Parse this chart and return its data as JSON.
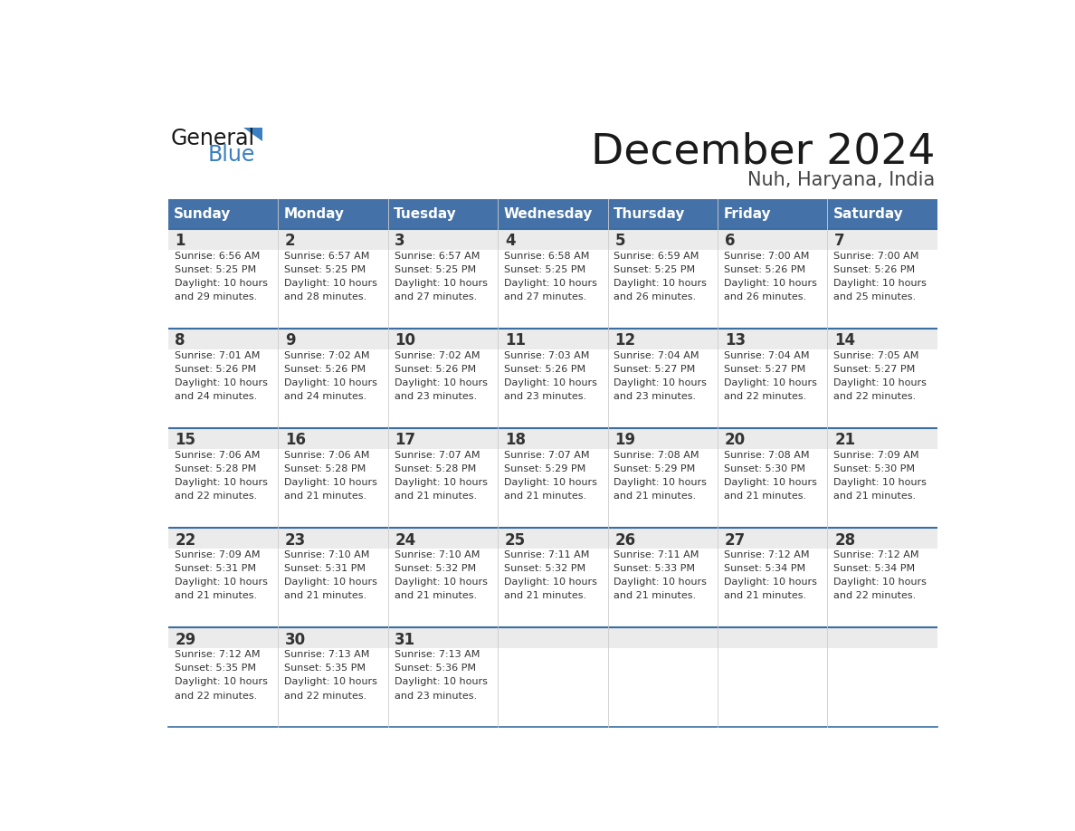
{
  "title": "December 2024",
  "subtitle": "Nuh, Haryana, India",
  "days_of_week": [
    "Sunday",
    "Monday",
    "Tuesday",
    "Wednesday",
    "Thursday",
    "Friday",
    "Saturday"
  ],
  "header_bg": "#4472a8",
  "header_text_color": "#ffffff",
  "cell_num_bg": "#ebebeb",
  "cell_text_bg": "#ffffff",
  "divider_color": "#3a6ea5",
  "text_color": "#333333",
  "calendar_data": [
    {
      "day": 1,
      "sunrise": "6:56 AM",
      "sunset": "5:25 PM",
      "daylight_h": "10 hours",
      "daylight_m": "and 29 minutes."
    },
    {
      "day": 2,
      "sunrise": "6:57 AM",
      "sunset": "5:25 PM",
      "daylight_h": "10 hours",
      "daylight_m": "and 28 minutes."
    },
    {
      "day": 3,
      "sunrise": "6:57 AM",
      "sunset": "5:25 PM",
      "daylight_h": "10 hours",
      "daylight_m": "and 27 minutes."
    },
    {
      "day": 4,
      "sunrise": "6:58 AM",
      "sunset": "5:25 PM",
      "daylight_h": "10 hours",
      "daylight_m": "and 27 minutes."
    },
    {
      "day": 5,
      "sunrise": "6:59 AM",
      "sunset": "5:25 PM",
      "daylight_h": "10 hours",
      "daylight_m": "and 26 minutes."
    },
    {
      "day": 6,
      "sunrise": "7:00 AM",
      "sunset": "5:26 PM",
      "daylight_h": "10 hours",
      "daylight_m": "and 26 minutes."
    },
    {
      "day": 7,
      "sunrise": "7:00 AM",
      "sunset": "5:26 PM",
      "daylight_h": "10 hours",
      "daylight_m": "and 25 minutes."
    },
    {
      "day": 8,
      "sunrise": "7:01 AM",
      "sunset": "5:26 PM",
      "daylight_h": "10 hours",
      "daylight_m": "and 24 minutes."
    },
    {
      "day": 9,
      "sunrise": "7:02 AM",
      "sunset": "5:26 PM",
      "daylight_h": "10 hours",
      "daylight_m": "and 24 minutes."
    },
    {
      "day": 10,
      "sunrise": "7:02 AM",
      "sunset": "5:26 PM",
      "daylight_h": "10 hours",
      "daylight_m": "and 23 minutes."
    },
    {
      "day": 11,
      "sunrise": "7:03 AM",
      "sunset": "5:26 PM",
      "daylight_h": "10 hours",
      "daylight_m": "and 23 minutes."
    },
    {
      "day": 12,
      "sunrise": "7:04 AM",
      "sunset": "5:27 PM",
      "daylight_h": "10 hours",
      "daylight_m": "and 23 minutes."
    },
    {
      "day": 13,
      "sunrise": "7:04 AM",
      "sunset": "5:27 PM",
      "daylight_h": "10 hours",
      "daylight_m": "and 22 minutes."
    },
    {
      "day": 14,
      "sunrise": "7:05 AM",
      "sunset": "5:27 PM",
      "daylight_h": "10 hours",
      "daylight_m": "and 22 minutes."
    },
    {
      "day": 15,
      "sunrise": "7:06 AM",
      "sunset": "5:28 PM",
      "daylight_h": "10 hours",
      "daylight_m": "and 22 minutes."
    },
    {
      "day": 16,
      "sunrise": "7:06 AM",
      "sunset": "5:28 PM",
      "daylight_h": "10 hours",
      "daylight_m": "and 21 minutes."
    },
    {
      "day": 17,
      "sunrise": "7:07 AM",
      "sunset": "5:28 PM",
      "daylight_h": "10 hours",
      "daylight_m": "and 21 minutes."
    },
    {
      "day": 18,
      "sunrise": "7:07 AM",
      "sunset": "5:29 PM",
      "daylight_h": "10 hours",
      "daylight_m": "and 21 minutes."
    },
    {
      "day": 19,
      "sunrise": "7:08 AM",
      "sunset": "5:29 PM",
      "daylight_h": "10 hours",
      "daylight_m": "and 21 minutes."
    },
    {
      "day": 20,
      "sunrise": "7:08 AM",
      "sunset": "5:30 PM",
      "daylight_h": "10 hours",
      "daylight_m": "and 21 minutes."
    },
    {
      "day": 21,
      "sunrise": "7:09 AM",
      "sunset": "5:30 PM",
      "daylight_h": "10 hours",
      "daylight_m": "and 21 minutes."
    },
    {
      "day": 22,
      "sunrise": "7:09 AM",
      "sunset": "5:31 PM",
      "daylight_h": "10 hours",
      "daylight_m": "and 21 minutes."
    },
    {
      "day": 23,
      "sunrise": "7:10 AM",
      "sunset": "5:31 PM",
      "daylight_h": "10 hours",
      "daylight_m": "and 21 minutes."
    },
    {
      "day": 24,
      "sunrise": "7:10 AM",
      "sunset": "5:32 PM",
      "daylight_h": "10 hours",
      "daylight_m": "and 21 minutes."
    },
    {
      "day": 25,
      "sunrise": "7:11 AM",
      "sunset": "5:32 PM",
      "daylight_h": "10 hours",
      "daylight_m": "and 21 minutes."
    },
    {
      "day": 26,
      "sunrise": "7:11 AM",
      "sunset": "5:33 PM",
      "daylight_h": "10 hours",
      "daylight_m": "and 21 minutes."
    },
    {
      "day": 27,
      "sunrise": "7:12 AM",
      "sunset": "5:34 PM",
      "daylight_h": "10 hours",
      "daylight_m": "and 21 minutes."
    },
    {
      "day": 28,
      "sunrise": "7:12 AM",
      "sunset": "5:34 PM",
      "daylight_h": "10 hours",
      "daylight_m": "and 22 minutes."
    },
    {
      "day": 29,
      "sunrise": "7:12 AM",
      "sunset": "5:35 PM",
      "daylight_h": "10 hours",
      "daylight_m": "and 22 minutes."
    },
    {
      "day": 30,
      "sunrise": "7:13 AM",
      "sunset": "5:35 PM",
      "daylight_h": "10 hours",
      "daylight_m": "and 22 minutes."
    },
    {
      "day": 31,
      "sunrise": "7:13 AM",
      "sunset": "5:36 PM",
      "daylight_h": "10 hours",
      "daylight_m": "and 23 minutes."
    }
  ]
}
